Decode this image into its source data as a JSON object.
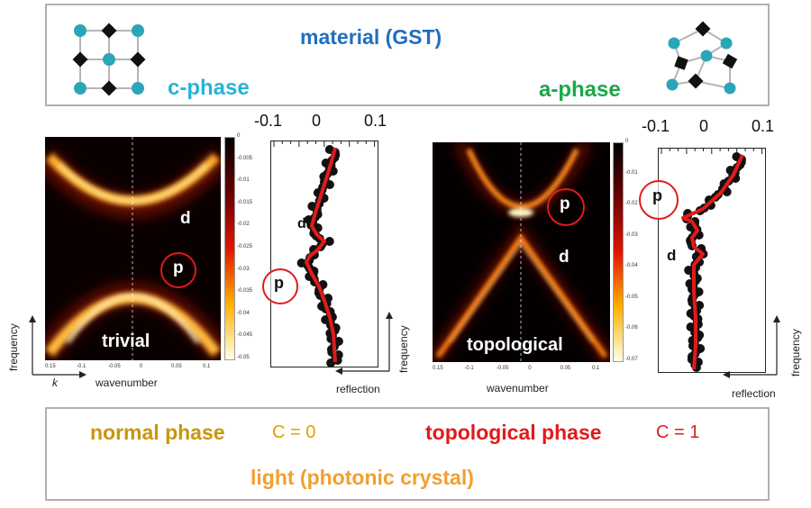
{
  "top": {
    "title": "material (GST)",
    "c_phase": "c-phase",
    "a_phase": "a-phase",
    "colors": {
      "title": "#1f6fc0",
      "c_phase": "#26b3d9",
      "a_phase": "#1aa84a"
    }
  },
  "left_panel": {
    "heatmap_label": "trivial",
    "xlabel": "wavenumber",
    "k_label": "k",
    "frequency_label": "frequency",
    "xticks": [
      "0.15",
      "-0.1",
      "-0.05",
      "0",
      "0.05",
      "0.1"
    ],
    "colorbar_ticks": [
      "0",
      "-0.005",
      "-0.01",
      "-0.015",
      "-0.02",
      "-0.025",
      "-0.03",
      "-0.035",
      "-0.04",
      "-0.045",
      "-0.05"
    ],
    "d_label": "d",
    "p_label": "p",
    "reflection": {
      "xticks": [
        "-0.1",
        "0",
        "0.1"
      ],
      "xlabel": "reflection",
      "ylabel": "frequency",
      "d_label": "d",
      "p_label": "p"
    }
  },
  "right_panel": {
    "heatmap_label": "topological",
    "xlabel": "wavenumber",
    "xticks": [
      "0.15",
      "-0.1",
      "-0.05",
      "0",
      "0.05",
      "0.1"
    ],
    "colorbar_ticks": [
      "0",
      "-0.01",
      "-0.02",
      "-0.03",
      "-0.04",
      "-0.05",
      "-0.06",
      "-0.07"
    ],
    "d_label": "d",
    "p_label": "p",
    "reflection": {
      "xticks": [
        "-0.1",
        "0",
        "0.1"
      ],
      "xlabel": "reflection",
      "ylabel": "frequency",
      "d_label": "d",
      "p_label": "p"
    }
  },
  "bottom": {
    "normal_phase": "normal phase",
    "c0": "C = 0",
    "topological_phase": "topological phase",
    "c1": "C = 1",
    "light": "light (photonic crystal)",
    "colors": {
      "normal": "#c8960a",
      "c0": "#d9a300",
      "topo": "#e21a1a",
      "c1": "#e21a1a",
      "light": "#f0a030"
    }
  },
  "lattice_colors": {
    "atom_a": "#2aa6b8",
    "atom_b": "#111111",
    "bond": "#b5b5b5"
  }
}
